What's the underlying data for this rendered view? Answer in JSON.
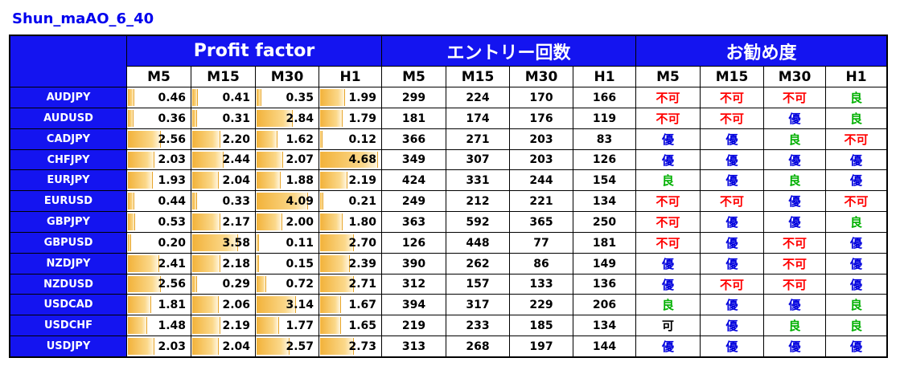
{
  "title": "Shun_maAO_6_40",
  "groups": {
    "pf": "Profit factor",
    "count": "エントリー回数",
    "rec": "お勧め度"
  },
  "timeframes": [
    "M5",
    "M15",
    "M30",
    "H1"
  ],
  "colors": {
    "header_bg": "#1414f0",
    "header_text": "#ffffff",
    "bar": "#f2b23a",
    "不可": "#ff0000",
    "良": "#00b000",
    "優": "#0000dd",
    "可": "#000000"
  },
  "chart_data": {
    "type": "table",
    "pf_bar_scale": [
      0,
      5
    ],
    "rows": [
      {
        "pair": "AUDJPY",
        "pf": [
          "0.46",
          "0.41",
          "0.35",
          "1.99"
        ],
        "count": [
          "299",
          "224",
          "170",
          "166"
        ],
        "rec": [
          "不可",
          "不可",
          "不可",
          "良"
        ]
      },
      {
        "pair": "AUDUSD",
        "pf": [
          "0.36",
          "0.31",
          "2.84",
          "1.79"
        ],
        "count": [
          "181",
          "174",
          "176",
          "119"
        ],
        "rec": [
          "不可",
          "不可",
          "優",
          "良"
        ]
      },
      {
        "pair": "CADJPY",
        "pf": [
          "2.56",
          "2.20",
          "1.62",
          "0.12"
        ],
        "count": [
          "366",
          "271",
          "203",
          "83"
        ],
        "rec": [
          "優",
          "優",
          "良",
          "不可"
        ]
      },
      {
        "pair": "CHFJPY",
        "pf": [
          "2.03",
          "2.44",
          "2.07",
          "4.68"
        ],
        "count": [
          "349",
          "307",
          "203",
          "126"
        ],
        "rec": [
          "優",
          "優",
          "優",
          "優"
        ]
      },
      {
        "pair": "EURJPY",
        "pf": [
          "1.93",
          "2.04",
          "1.88",
          "2.19"
        ],
        "count": [
          "424",
          "331",
          "244",
          "154"
        ],
        "rec": [
          "良",
          "優",
          "良",
          "優"
        ]
      },
      {
        "pair": "EURUSD",
        "pf": [
          "0.44",
          "0.33",
          "4.09",
          "0.21"
        ],
        "count": [
          "249",
          "212",
          "221",
          "134"
        ],
        "rec": [
          "不可",
          "不可",
          "優",
          "不可"
        ]
      },
      {
        "pair": "GBPJPY",
        "pf": [
          "0.53",
          "2.17",
          "2.00",
          "1.80"
        ],
        "count": [
          "363",
          "592",
          "365",
          "250"
        ],
        "rec": [
          "不可",
          "優",
          "優",
          "良"
        ]
      },
      {
        "pair": "GBPUSD",
        "pf": [
          "0.20",
          "3.58",
          "0.11",
          "2.70"
        ],
        "count": [
          "126",
          "448",
          "77",
          "181"
        ],
        "rec": [
          "不可",
          "優",
          "不可",
          "優"
        ]
      },
      {
        "pair": "NZDJPY",
        "pf": [
          "2.41",
          "2.18",
          "0.15",
          "2.39"
        ],
        "count": [
          "390",
          "262",
          "86",
          "149"
        ],
        "rec": [
          "優",
          "優",
          "不可",
          "優"
        ]
      },
      {
        "pair": "NZDUSD",
        "pf": [
          "2.56",
          "0.29",
          "0.72",
          "2.71"
        ],
        "count": [
          "312",
          "157",
          "133",
          "136"
        ],
        "rec": [
          "優",
          "不可",
          "不可",
          "優"
        ]
      },
      {
        "pair": "USDCAD",
        "pf": [
          "1.81",
          "2.06",
          "3.14",
          "1.67"
        ],
        "count": [
          "394",
          "317",
          "229",
          "206"
        ],
        "rec": [
          "良",
          "優",
          "優",
          "良"
        ]
      },
      {
        "pair": "USDCHF",
        "pf": [
          "1.48",
          "2.19",
          "1.77",
          "1.65"
        ],
        "count": [
          "219",
          "233",
          "185",
          "134"
        ],
        "rec": [
          "可",
          "優",
          "良",
          "良"
        ]
      },
      {
        "pair": "USDJPY",
        "pf": [
          "2.03",
          "2.04",
          "2.57",
          "2.73"
        ],
        "count": [
          "313",
          "268",
          "197",
          "144"
        ],
        "rec": [
          "優",
          "優",
          "優",
          "優"
        ]
      }
    ]
  }
}
